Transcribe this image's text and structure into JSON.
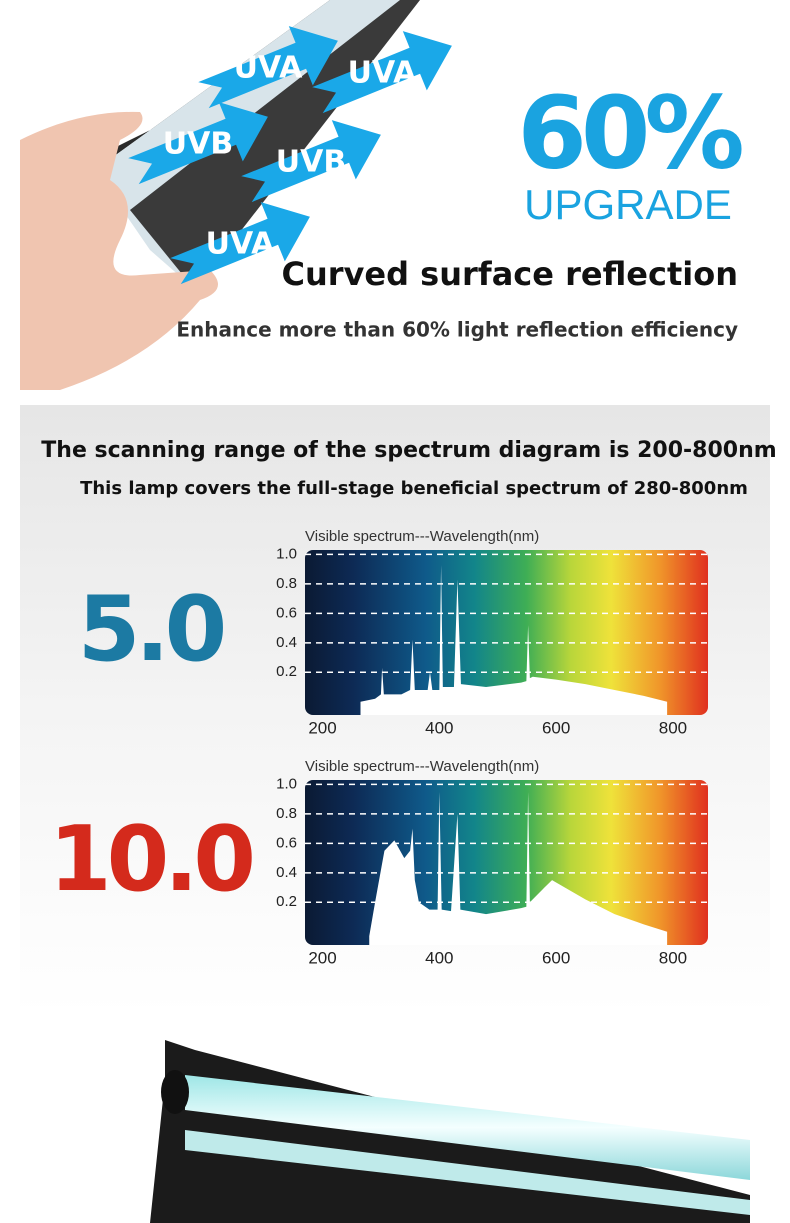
{
  "hero": {
    "arrows": [
      "UVA",
      "UVA",
      "UVB",
      "UVB",
      "UVA"
    ],
    "percent": "60%",
    "upgrade": "UPGRADE",
    "title": "Curved surface reflection",
    "subtitle": "Enhance more than 60% light reflection efficiency"
  },
  "spectrum_section": {
    "heading": "The scanning range of the spectrum diagram is 200-800nm",
    "subheading": "This lamp covers the full-stage beneficial spectrum of 280-800nm"
  },
  "chart_data": [
    {
      "type": "area",
      "label": "5.0",
      "label_color": "#1c7aa3",
      "title": "Visible spectrum---Wavelength(nm)",
      "x": [
        265,
        290,
        300,
        302,
        305,
        335,
        350,
        354,
        358,
        380,
        384,
        388,
        400,
        403,
        406,
        425,
        431,
        437,
        480,
        540,
        549,
        552,
        555,
        560,
        600,
        650,
        700,
        750,
        790
      ],
      "series": [
        {
          "color": "#ffffff",
          "values": [
            0,
            0.02,
            0.05,
            0.23,
            0.05,
            0.05,
            0.08,
            0.42,
            0.08,
            0.08,
            0.2,
            0.08,
            0.08,
            0.93,
            0.1,
            0.1,
            0.83,
            0.12,
            0.1,
            0.13,
            0.14,
            0.52,
            0.16,
            0.17,
            0.15,
            0.12,
            0.08,
            0.04,
            0
          ]
        }
      ],
      "xlim": [
        170,
        860
      ],
      "ylim": [
        -0.09,
        1.03
      ],
      "xticks": [
        200,
        400,
        600,
        800
      ],
      "yticks": [
        {
          "value": 1,
          "label": "1.0"
        },
        0.8,
        0.6,
        0.4,
        0.2
      ],
      "grid": true
    },
    {
      "type": "area",
      "label": "10.0",
      "label_color": "#d42a1c",
      "title": "Visible spectrum---Wavelength(nm)",
      "x": [
        280,
        290,
        306,
        323,
        340,
        350,
        354,
        358,
        365,
        383,
        397,
        400,
        404,
        420,
        431,
        436,
        480,
        540,
        549,
        552,
        555,
        580,
        593,
        650,
        700,
        750,
        790
      ],
      "series": [
        {
          "color": "#ffffff",
          "values": [
            -0.03,
            0.2,
            0.55,
            0.62,
            0.5,
            0.55,
            0.7,
            0.35,
            0.2,
            0.15,
            0.15,
            0.95,
            0.15,
            0.14,
            0.8,
            0.15,
            0.12,
            0.16,
            0.17,
            0.95,
            0.2,
            0.3,
            0.35,
            0.22,
            0.12,
            0.05,
            0
          ]
        }
      ],
      "xlim": [
        170,
        860
      ],
      "ylim": [
        -0.09,
        1.03
      ],
      "xticks": [
        200,
        400,
        600,
        800
      ],
      "yticks": [
        {
          "value": 1,
          "label": "1.0"
        },
        0.8,
        0.6,
        0.4,
        0.2
      ],
      "grid": true
    }
  ]
}
